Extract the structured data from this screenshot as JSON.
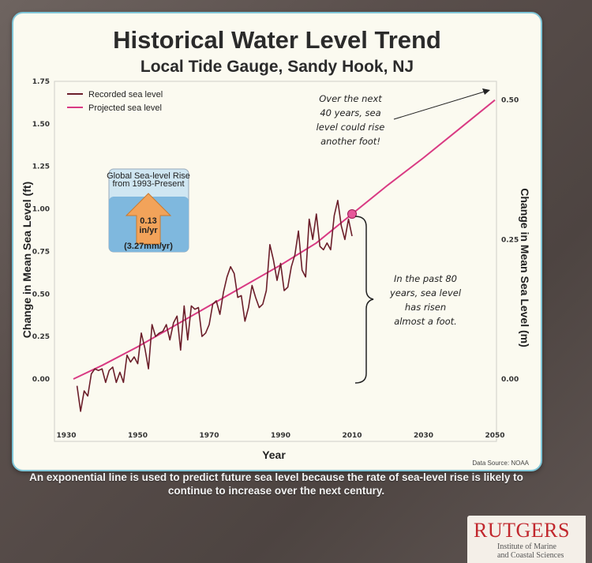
{
  "chart_data": {
    "type": "line",
    "title": "Historical Water Level Trend",
    "subtitle": "Local Tide Gauge, Sandy Hook, NJ",
    "xlabel": "Year",
    "ylabel_left": "Change in Mean Sea Level (ft)",
    "ylabel_right": "Change in Mean Sea Level (m)",
    "xlim": [
      1930,
      2050
    ],
    "ylim": [
      -0.25,
      1.75
    ],
    "x_ticks": [
      1930,
      1950,
      1970,
      1990,
      2010,
      2030,
      2050
    ],
    "y_ticks_left": [
      "1.75",
      "1.50",
      "1.25",
      "1.00",
      "0.75",
      "0.50",
      "0.25",
      "0.00"
    ],
    "y_ticks_left_values": [
      1.75,
      1.5,
      1.25,
      1.0,
      0.75,
      0.5,
      0.25,
      0.0
    ],
    "y_ticks_right": [
      "0.50",
      "0.25",
      "0.00"
    ],
    "y_ticks_right_values_ft": [
      1.64,
      0.82,
      0.0
    ],
    "legend": [
      "Recorded sea level",
      "Projected sea level"
    ],
    "series": [
      {
        "name": "Recorded sea level",
        "color": "#6b1e2a",
        "x": [
          1933,
          1934,
          1935,
          1936,
          1937,
          1938,
          1939,
          1940,
          1941,
          1942,
          1943,
          1944,
          1945,
          1946,
          1947,
          1948,
          1949,
          1950,
          1951,
          1952,
          1953,
          1954,
          1955,
          1956,
          1957,
          1958,
          1959,
          1960,
          1961,
          1962,
          1963,
          1964,
          1965,
          1966,
          1967,
          1968,
          1969,
          1970,
          1971,
          1972,
          1973,
          1974,
          1975,
          1976,
          1977,
          1978,
          1979,
          1980,
          1981,
          1982,
          1983,
          1984,
          1985,
          1986,
          1987,
          1988,
          1989,
          1990,
          1991,
          1992,
          1993,
          1994,
          1995,
          1996,
          1997,
          1998,
          1999,
          2000,
          2001,
          2002,
          2003,
          2004,
          2005,
          2006,
          2007,
          2008,
          2009,
          2010
        ],
        "values": [
          -0.04,
          -0.19,
          -0.07,
          -0.1,
          0.03,
          0.06,
          0.05,
          0.06,
          -0.02,
          0.05,
          0.07,
          -0.02,
          0.04,
          -0.02,
          0.14,
          0.1,
          0.13,
          0.09,
          0.27,
          0.18,
          0.06,
          0.32,
          0.25,
          0.27,
          0.28,
          0.32,
          0.23,
          0.33,
          0.37,
          0.17,
          0.43,
          0.23,
          0.43,
          0.41,
          0.42,
          0.25,
          0.27,
          0.32,
          0.44,
          0.46,
          0.38,
          0.51,
          0.6,
          0.66,
          0.62,
          0.48,
          0.49,
          0.34,
          0.42,
          0.55,
          0.48,
          0.42,
          0.44,
          0.52,
          0.79,
          0.7,
          0.58,
          0.68,
          0.52,
          0.54,
          0.66,
          0.73,
          0.87,
          0.64,
          0.6,
          0.94,
          0.82,
          0.97,
          0.78,
          0.76,
          0.8,
          0.76,
          0.96,
          1.05,
          0.9,
          0.82,
          0.94,
          0.84
        ]
      },
      {
        "name": "Projected sea level",
        "color": "#d93a83",
        "x": [
          1932,
          1940,
          1950,
          1960,
          1970,
          1980,
          1990,
          2000,
          2010,
          2020,
          2030,
          2040,
          2050
        ],
        "values": [
          0.0,
          0.08,
          0.19,
          0.31,
          0.43,
          0.55,
          0.67,
          0.8,
          0.97,
          1.14,
          1.3,
          1.47,
          1.64
        ]
      }
    ],
    "highlight_point": {
      "x": 2010,
      "y": 0.97
    },
    "annotations": {
      "top": [
        "Over the next",
        "40 years, sea",
        "level could rise",
        "another foot!"
      ],
      "right": [
        "In the past 80",
        "years, sea level",
        "has risen",
        "almost a foot."
      ]
    },
    "inset": {
      "title_lines": [
        "Global Sea-level Rise",
        "from 1993-Present"
      ],
      "rate_in": "0.13",
      "rate_unit": "in/yr",
      "rate_mm": "(3.27mm/yr)"
    },
    "source": "Data Source: NOAA"
  },
  "caption": "An exponential line is used to predict future sea level because the rate of sea-level rise is likely to continue to increase over the next century.",
  "logo": {
    "brand": "RUTGERS",
    "subtitle_lines": [
      "Institute of Marine",
      "and Coastal Sciences"
    ]
  }
}
